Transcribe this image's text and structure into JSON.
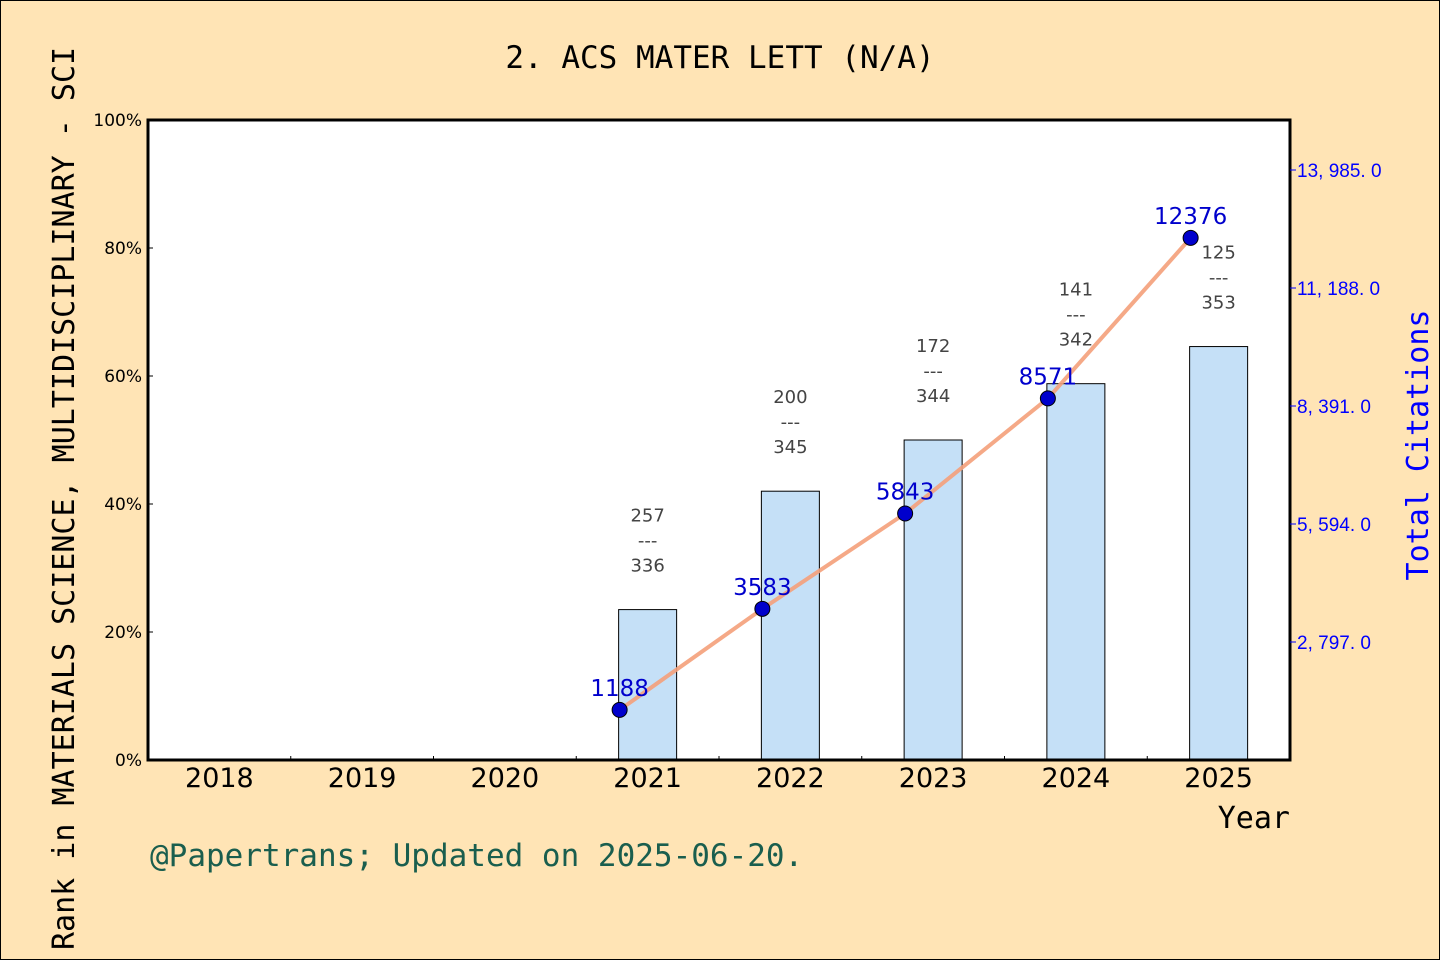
{
  "chart_data": {
    "type": "bar+line",
    "title": "2. ACS MATER LETT (N/A)",
    "xlabel": "Year",
    "ylabel": "Rank in MATERIALS SCIENCE, MULTIDISCIPLINARY - SCI",
    "ylabel_right": "Total Citations",
    "categories": [
      "2018",
      "2019",
      "2020",
      "2021",
      "2022",
      "2023",
      "2024",
      "2025"
    ],
    "ylim": [
      0,
      100
    ],
    "y_ticks": [
      "0%",
      "20%",
      "40%",
      "60%",
      "80%",
      "100%"
    ],
    "y_right_ticks": [
      "2, 797. 0",
      "5, 594. 0",
      "8, 391. 0",
      "11, 188. 0",
      "13, 985. 0"
    ],
    "y_right_tick_values": [
      2797,
      5594,
      8391,
      11188,
      13985
    ],
    "y_right_lim": [
      0,
      15170
    ],
    "bars": {
      "values_percent": [
        null,
        null,
        null,
        23.5,
        42.0,
        50.0,
        58.8,
        64.6
      ],
      "rank": [
        null,
        null,
        null,
        "257",
        "200",
        "172",
        "141",
        "125"
      ],
      "total": [
        null,
        null,
        null,
        "336",
        "345",
        "344",
        "342",
        "353"
      ],
      "separator": "---",
      "color": "#C5E0F7"
    },
    "line": {
      "values": [
        null,
        null,
        null,
        1188,
        3583,
        5843,
        8571,
        12376
      ],
      "labels": [
        null,
        null,
        null,
        "1188",
        "3583",
        "5843",
        "8571",
        "12376"
      ],
      "line_color": "#F4A07A",
      "marker_color": "#0000CC"
    },
    "grid": false,
    "footer": "@Papertrans; Updated on 2025-06-20."
  }
}
